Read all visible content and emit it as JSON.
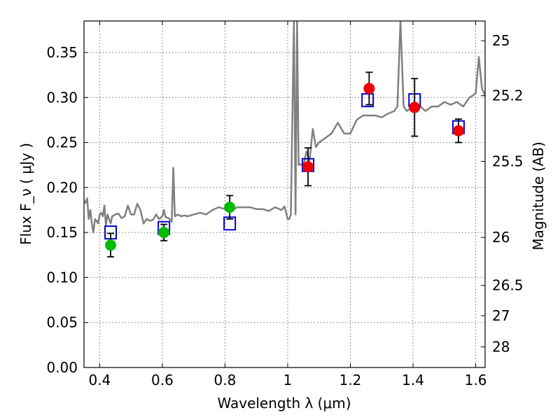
{
  "chart_data": {
    "type": "scatter",
    "title": "",
    "xlabel": "Wavelength  λ (μm)",
    "ylabel": "Flux  F_ν  ( μJy )",
    "ylabel_right": "Magnitude (AB)",
    "xlim": [
      0.35,
      1.63
    ],
    "ylim": [
      0.0,
      0.385
    ],
    "grid": true,
    "x_ticks": [
      0.4,
      0.6,
      0.8,
      1.0,
      1.2,
      1.4,
      1.6
    ],
    "x_tick_labels": [
      "0.4",
      "0.6",
      "0.8",
      "1",
      "1.2",
      "1.4",
      "1.6"
    ],
    "y_ticks": [
      0.0,
      0.05,
      0.1,
      0.15,
      0.2,
      0.25,
      0.3,
      0.35
    ],
    "y_tick_labels": [
      "0.00",
      "0.05",
      "0.10",
      "0.15",
      "0.20",
      "0.25",
      "0.30",
      "0.35"
    ],
    "right_ticks": [
      {
        "mag": 25,
        "label": "25"
      },
      {
        "mag": 25.2,
        "label": "25.2"
      },
      {
        "mag": 25.5,
        "label": "25.5"
      },
      {
        "mag": 26,
        "label": "26"
      },
      {
        "mag": 26.5,
        "label": "26.5"
      },
      {
        "mag": 27,
        "label": "27"
      },
      {
        "mag": 28,
        "label": "28"
      }
    ],
    "series": [
      {
        "kind": "line",
        "color": "#808080",
        "x": [
          0.35,
          0.355,
          0.36,
          0.365,
          0.37,
          0.375,
          0.38,
          0.385,
          0.39,
          0.395,
          0.4,
          0.405,
          0.41,
          0.415,
          0.42,
          0.425,
          0.43,
          0.435,
          0.44,
          0.45,
          0.46,
          0.47,
          0.48,
          0.49,
          0.5,
          0.51,
          0.52,
          0.53,
          0.54,
          0.55,
          0.56,
          0.57,
          0.58,
          0.59,
          0.6,
          0.605,
          0.61,
          0.62,
          0.63,
          0.635,
          0.64,
          0.65,
          0.66,
          0.67,
          0.68,
          0.7,
          0.72,
          0.74,
          0.76,
          0.78,
          0.8,
          0.82,
          0.84,
          0.86,
          0.88,
          0.9,
          0.92,
          0.94,
          0.96,
          0.98,
          0.99,
          1.0,
          1.005,
          1.01,
          1.02,
          1.025,
          1.03,
          1.035,
          1.04,
          1.05,
          1.06,
          1.07,
          1.08,
          1.09,
          1.1,
          1.12,
          1.14,
          1.16,
          1.18,
          1.2,
          1.22,
          1.24,
          1.26,
          1.28,
          1.3,
          1.32,
          1.34,
          1.35,
          1.36,
          1.37,
          1.38,
          1.4,
          1.42,
          1.44,
          1.46,
          1.48,
          1.5,
          1.52,
          1.54,
          1.56,
          1.58,
          1.59,
          1.6,
          1.61,
          1.62,
          1.63
        ],
        "y": [
          0.185,
          0.183,
          0.188,
          0.165,
          0.175,
          0.16,
          0.15,
          0.165,
          0.163,
          0.16,
          0.17,
          0.172,
          0.168,
          0.18,
          0.158,
          0.17,
          0.165,
          0.16,
          0.168,
          0.17,
          0.171,
          0.166,
          0.168,
          0.18,
          0.17,
          0.17,
          0.182,
          0.175,
          0.16,
          0.165,
          0.163,
          0.164,
          0.17,
          0.165,
          0.168,
          0.175,
          0.167,
          0.166,
          0.162,
          0.222,
          0.168,
          0.17,
          0.168,
          0.169,
          0.168,
          0.17,
          0.172,
          0.17,
          0.175,
          0.178,
          0.176,
          0.175,
          0.178,
          0.178,
          0.178,
          0.176,
          0.176,
          0.174,
          0.178,
          0.175,
          0.179,
          0.165,
          0.165,
          0.17,
          0.385,
          0.17,
          0.385,
          0.225,
          0.226,
          0.224,
          0.24,
          0.23,
          0.265,
          0.245,
          0.25,
          0.255,
          0.26,
          0.272,
          0.26,
          0.26,
          0.275,
          0.28,
          0.28,
          0.28,
          0.278,
          0.282,
          0.285,
          0.29,
          0.385,
          0.29,
          0.285,
          0.29,
          0.291,
          0.285,
          0.29,
          0.29,
          0.295,
          0.292,
          0.295,
          0.29,
          0.3,
          0.302,
          0.305,
          0.345,
          0.31,
          0.302
        ]
      },
      {
        "kind": "model-squares",
        "color": "#0000cc",
        "x": [
          0.435,
          0.605,
          0.815,
          1.065,
          1.255,
          1.405,
          1.545
        ],
        "y": [
          0.15,
          0.155,
          0.16,
          0.225,
          0.297,
          0.297,
          0.267
        ]
      },
      {
        "kind": "observed-green",
        "color": "#00bb00",
        "x": [
          0.435,
          0.605,
          0.815
        ],
        "y": [
          0.136,
          0.15,
          0.178
        ],
        "err": [
          0.013,
          0.009,
          0.013
        ]
      },
      {
        "kind": "observed-red",
        "color": "#ee0000",
        "x": [
          1.065,
          1.26,
          1.405,
          1.545
        ],
        "y": [
          0.223,
          0.31,
          0.289,
          0.263
        ],
        "err": [
          0.021,
          0.018,
          0.032,
          0.013
        ]
      }
    ]
  }
}
